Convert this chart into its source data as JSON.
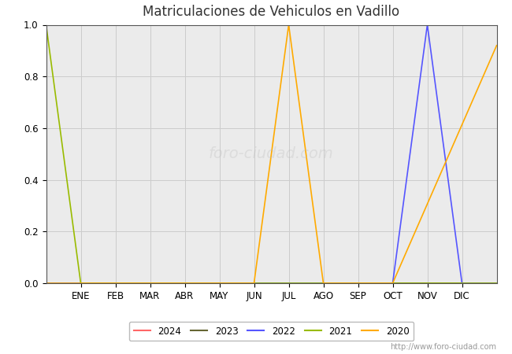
{
  "title": "Matriculaciones de Vehiculos en Vadillo",
  "title_color": "#333333",
  "title_fontsize": 12,
  "x_labels": [
    "ENE",
    "FEB",
    "MAR",
    "ABR",
    "MAY",
    "JUN",
    "JUL",
    "AGO",
    "SEP",
    "OCT",
    "NOV",
    "DIC"
  ],
  "x_positions": [
    1,
    2,
    3,
    4,
    5,
    6,
    7,
    8,
    9,
    10,
    11,
    12
  ],
  "ylim": [
    0.0,
    1.0
  ],
  "xlim": [
    0,
    13
  ],
  "grid_color": "#cccccc",
  "plot_bg_color": "#ebebeb",
  "fig_bg_color": "#ffffff",
  "series": [
    {
      "label": "2024",
      "color": "#ff6666",
      "data_x": [
        0,
        13
      ],
      "data_y": [
        0.0,
        0.0
      ]
    },
    {
      "label": "2023",
      "color": "#666633",
      "data_x": [
        0,
        13
      ],
      "data_y": [
        0.0,
        0.0
      ]
    },
    {
      "label": "2022",
      "color": "#5555ff",
      "data_x": [
        0,
        10,
        11,
        12,
        13
      ],
      "data_y": [
        0.0,
        0.0,
        1.0,
        0.0,
        0.0
      ]
    },
    {
      "label": "2021",
      "color": "#99bb00",
      "data_x": [
        0,
        1,
        13
      ],
      "data_y": [
        1.0,
        0.0,
        0.0
      ]
    },
    {
      "label": "2020",
      "color": "#ffaa00",
      "data_x": [
        0,
        6,
        7,
        8,
        10,
        13
      ],
      "data_y": [
        0.0,
        0.0,
        1.0,
        0.0,
        0.0,
        0.92
      ]
    }
  ],
  "legend_labels": [
    "2024",
    "2023",
    "2022",
    "2021",
    "2020"
  ],
  "legend_colors": [
    "#ff6666",
    "#666633",
    "#5555ff",
    "#99bb00",
    "#ffaa00"
  ],
  "watermark": "http://www.foro-ciudad.com"
}
